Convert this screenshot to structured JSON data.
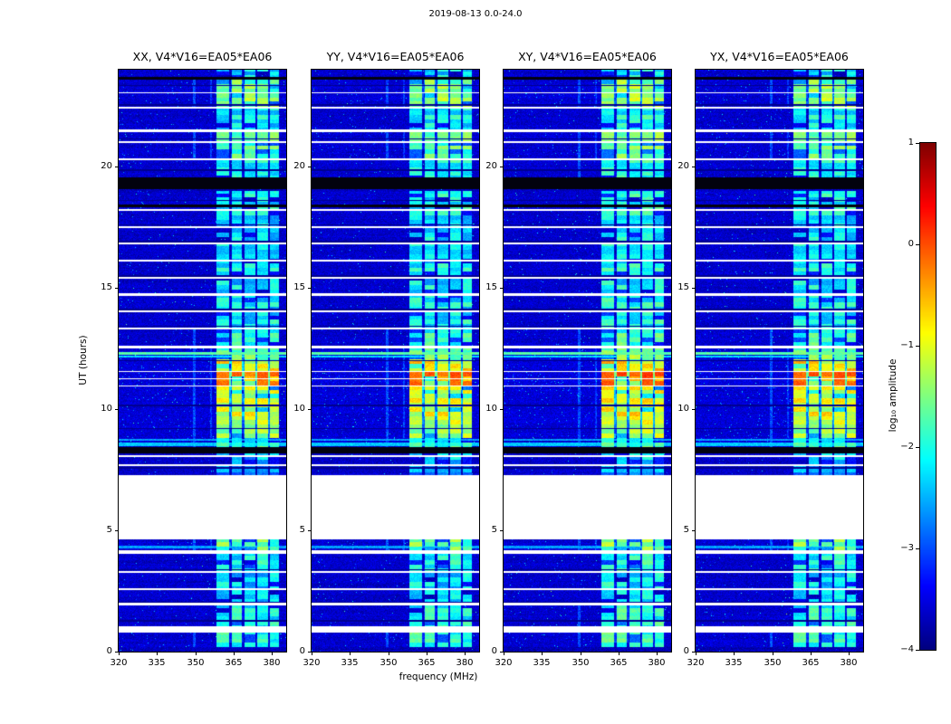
{
  "figure": {
    "title": "2019-08-13 0.0-24.0"
  },
  "axes": {
    "xlabel": "frequency (MHz)",
    "ylabel": "UT (hours)",
    "xticks": [
      320,
      335,
      350,
      365,
      380
    ],
    "yticks": [
      0,
      5,
      10,
      15,
      20
    ]
  },
  "panels": [
    {
      "id": "XX",
      "title": "XX, V4*V16=EA05*EA06"
    },
    {
      "id": "YY",
      "title": "YY, V4*V16=EA05*EA06"
    },
    {
      "id": "XY",
      "title": "XY, V4*V16=EA05*EA06"
    },
    {
      "id": "YX",
      "title": "YX, V4*V16=EA05*EA06"
    }
  ],
  "colorbar": {
    "label": "log₁₀ amplitude",
    "ticks": [
      1,
      0,
      -1,
      -2,
      -3,
      -4
    ],
    "tick_labels": [
      "1",
      "0",
      "−1",
      "−2",
      "−3",
      "−4"
    ],
    "vmin": -4,
    "vmax": 1,
    "colormap": "jet"
  },
  "chart_data": {
    "type": "heatmap",
    "title": "2019-08-13 0.0-24.0",
    "xlabel": "frequency (MHz)",
    "ylabel": "UT (hours)",
    "value_label": "log₁₀ amplitude",
    "colormap": "jet",
    "freq_range": [
      320,
      385.5
    ],
    "time_range": [
      0,
      24
    ],
    "value_range": [
      -4,
      1
    ],
    "background_level": -3.72,
    "band": {
      "f0": 358.2,
      "f1": 382.6,
      "channel_gaps": [
        363.8,
        368.8,
        373.8,
        378.8
      ]
    },
    "emission_segments": [
      [
        0.2,
        0.78,
        -2.0
      ],
      [
        1.06,
        1.9,
        -2.15
      ],
      [
        2.0,
        2.52,
        -2.5
      ],
      [
        2.62,
        3.24,
        -2.35
      ],
      [
        3.34,
        4.02,
        -2.2
      ],
      [
        4.18,
        4.62,
        -1.7
      ],
      [
        7.28,
        7.64,
        -2.7
      ],
      [
        7.72,
        8.02,
        -2.5
      ],
      [
        8.1,
        8.18,
        -2.6
      ],
      [
        8.44,
        8.8,
        -2.0
      ],
      [
        8.8,
        9.35,
        -1.5
      ],
      [
        9.35,
        10.92,
        -1.15
      ],
      [
        10.98,
        11.22,
        -0.45
      ],
      [
        11.28,
        11.52,
        -0.4
      ],
      [
        11.58,
        12.0,
        -1.0
      ],
      [
        12.0,
        12.52,
        -1.6
      ],
      [
        12.62,
        13.28,
        -2.0
      ],
      [
        13.36,
        13.98,
        -2.25
      ],
      [
        14.06,
        14.68,
        -2.3
      ],
      [
        14.78,
        15.38,
        -2.35
      ],
      [
        15.46,
        16.08,
        -2.3
      ],
      [
        16.16,
        16.78,
        -2.3
      ],
      [
        16.86,
        17.48,
        -2.35
      ],
      [
        17.56,
        18.18,
        -2.3
      ],
      [
        18.26,
        18.98,
        -2.25
      ],
      [
        19.56,
        20.28,
        -2.1
      ],
      [
        20.36,
        20.98,
        -1.8
      ],
      [
        21.06,
        21.42,
        -1.75
      ],
      [
        21.52,
        22.38,
        -2.2
      ],
      [
        22.46,
        23.02,
        -1.5
      ],
      [
        23.08,
        23.6,
        -1.6
      ],
      [
        23.7,
        24.0,
        -2.4
      ]
    ],
    "white_gaps": [
      [
        0.78,
        1.06
      ],
      [
        1.9,
        2.0
      ],
      [
        2.52,
        2.62
      ],
      [
        3.24,
        3.34
      ],
      [
        4.02,
        4.18
      ],
      [
        4.62,
        7.28
      ],
      [
        7.64,
        7.72
      ],
      [
        8.02,
        8.1
      ],
      [
        10.92,
        10.98
      ],
      [
        11.22,
        11.28
      ],
      [
        11.52,
        11.58
      ],
      [
        12.52,
        12.62
      ],
      [
        13.28,
        13.36
      ],
      [
        13.98,
        14.06
      ],
      [
        14.68,
        14.78
      ],
      [
        15.38,
        15.46
      ],
      [
        16.08,
        16.16
      ],
      [
        16.78,
        16.86
      ],
      [
        17.48,
        17.56
      ],
      [
        18.18,
        18.26
      ],
      [
        20.28,
        20.36
      ],
      [
        20.98,
        21.06
      ],
      [
        21.42,
        21.52
      ],
      [
        22.38,
        22.46
      ],
      [
        23.02,
        23.08
      ]
    ],
    "black_bands": [
      [
        8.18,
        8.44
      ],
      [
        18.32,
        18.42
      ],
      [
        19.08,
        19.56
      ],
      [
        23.6,
        23.7
      ]
    ],
    "dark_rows": [
      1.28,
      2.04,
      3.38,
      7.58,
      9.2,
      10.15,
      12.0,
      13.42,
      14.1,
      15.5,
      16.9,
      17.6,
      18.6,
      19.85,
      21.15,
      22.55,
      23.35
    ],
    "bright_rows": [
      {
        "t": 12.3,
        "w": 0.07,
        "level": -1.7
      },
      {
        "t": 12.16,
        "w": 0.04,
        "level": -2.3
      },
      {
        "t": 8.56,
        "w": 0.07,
        "level": -2.4
      },
      {
        "t": 8.73,
        "w": 0.05,
        "level": -2.6
      },
      {
        "t": 4.3,
        "w": 0.05,
        "level": -2.6
      }
    ],
    "weak_columns": [
      {
        "f": 349.7,
        "hw": 0.5,
        "level": -3.0,
        "min_level": -2.0
      },
      {
        "f": 356.2,
        "hw": 0.4,
        "level": -3.1,
        "min_level": -1.8
      }
    ],
    "panel_offsets": [
      0,
      0.05,
      0.15,
      0.08
    ]
  }
}
